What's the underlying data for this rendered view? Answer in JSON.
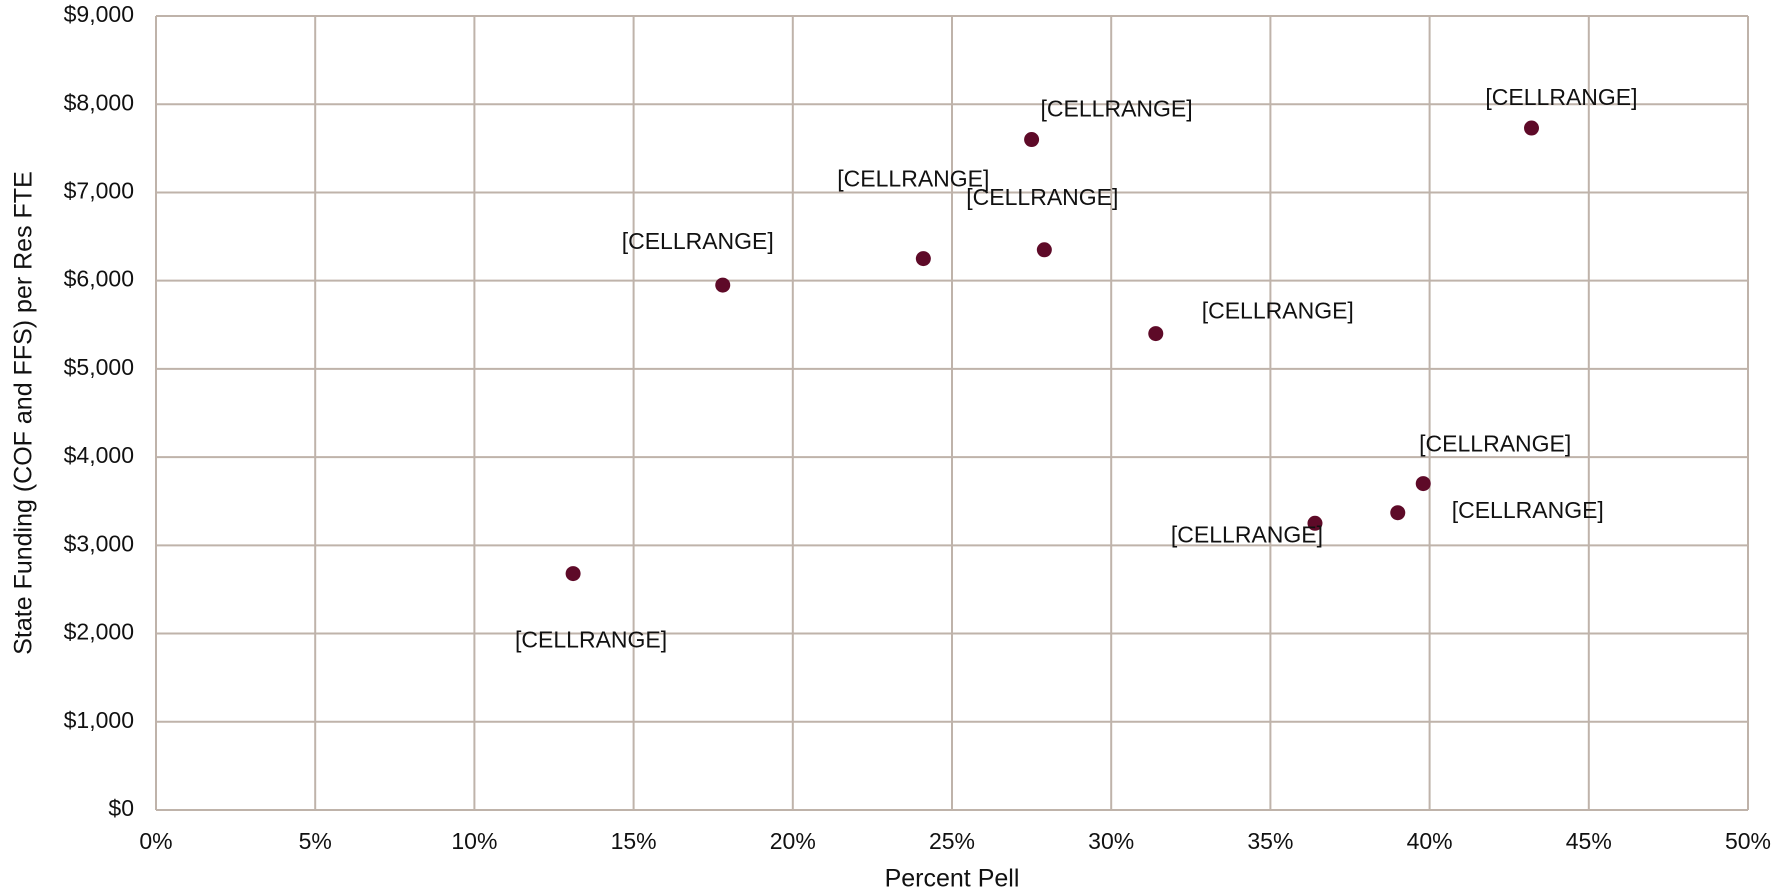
{
  "chart_data": {
    "type": "scatter",
    "x_label": "Percent Pell",
    "y_label": "State Funding (COF and FFS) per Res FTE",
    "color": "#5e0a28",
    "grid": true,
    "x": [
      13.1,
      17.8,
      24.1,
      27.5,
      27.9,
      31.4,
      36.4,
      39.0,
      39.8,
      43.2
    ],
    "values": [
      2680,
      5950,
      6250,
      7600,
      6350,
      5400,
      3250,
      3370,
      3700,
      7730
    ],
    "value_labels": [
      "[CELLRANGE]",
      "[CELLRANGE]",
      "[CELLRANGE]",
      "[CELLRANGE]",
      "[CELLRANGE]",
      "[CELLRANGE]",
      "[CELLRANGE]",
      "[CELLRANGE]",
      "[CELLRANGE]",
      "[CELLRANGE]"
    ],
    "xlim": [
      0,
      50
    ],
    "xticks": [
      {
        "value": 0,
        "label": "0%"
      },
      {
        "value": 5,
        "label": "5%"
      },
      {
        "value": 10,
        "label": "10%"
      },
      {
        "value": 15,
        "label": "15%"
      },
      {
        "value": 20,
        "label": "20%"
      },
      {
        "value": 25,
        "label": "25%"
      },
      {
        "value": 30,
        "label": "30%"
      },
      {
        "value": 35,
        "label": "35%"
      },
      {
        "value": 40,
        "label": "40%"
      },
      {
        "value": 45,
        "label": "45%"
      },
      {
        "value": 50,
        "label": "50%"
      }
    ],
    "ylim": [
      0,
      9000
    ],
    "yticks": [
      {
        "value": 0,
        "label": "$0"
      },
      {
        "value": 1000,
        "label": "$1,000"
      },
      {
        "value": 2000,
        "label": "$2,000"
      },
      {
        "value": 3000,
        "label": "$3,000"
      },
      {
        "value": 4000,
        "label": "$4,000"
      },
      {
        "value": 5000,
        "label": "$5,000"
      },
      {
        "value": 6000,
        "label": "$6,000"
      },
      {
        "value": 7000,
        "label": "$7,000"
      },
      {
        "value": 8000,
        "label": "$8,000"
      },
      {
        "value": 9000,
        "label": "$9,000"
      }
    ]
  }
}
